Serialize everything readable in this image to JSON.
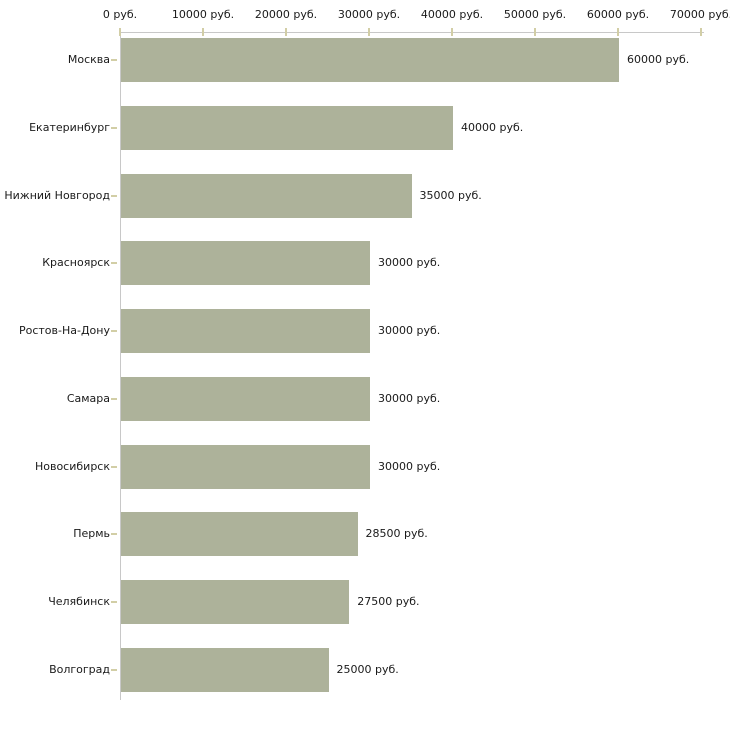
{
  "chart_data": {
    "type": "bar",
    "orientation": "horizontal",
    "title": "",
    "xlabel": "",
    "ylabel": "",
    "unit": "руб.",
    "categories": [
      "Москва",
      "Екатеринбург",
      "Нижний Новгород",
      "Красноярск",
      "Ростов-На-Дону",
      "Самара",
      "Новосибирск",
      "Пермь",
      "Челябинск",
      "Волгоград"
    ],
    "values": [
      60000,
      40000,
      35000,
      30000,
      30000,
      30000,
      30000,
      28500,
      27500,
      25000
    ],
    "value_labels": [
      "60000 руб.",
      "40000 руб.",
      "35000 руб.",
      "30000 руб.",
      "30000 руб.",
      "30000 руб.",
      "30000 руб.",
      "28500 руб.",
      "27500 руб.",
      "25000 руб."
    ],
    "xlim": [
      0,
      70000
    ],
    "x_ticks": [
      0,
      10000,
      20000,
      30000,
      40000,
      50000,
      60000,
      70000
    ],
    "x_tick_labels": [
      "0 руб.",
      "10000 руб.",
      "20000 руб.",
      "30000 руб.",
      "40000 руб.",
      "50000 руб.",
      "60000 руб.",
      "70000 руб."
    ],
    "grid": false,
    "legend": null,
    "axis_position": "top",
    "colors": {
      "bar": "#adb29a",
      "axis_line": "#c8c8c8",
      "tick_mark": "#d2cea6",
      "text": "#1a1a1a",
      "background": "#ffffff"
    }
  }
}
